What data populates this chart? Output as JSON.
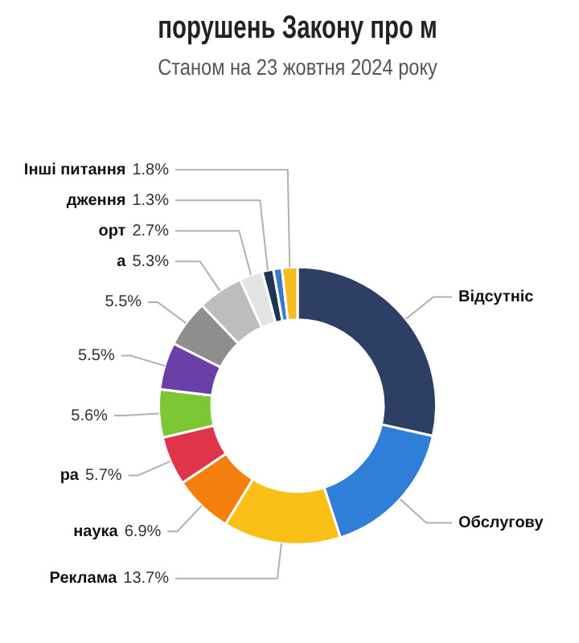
{
  "chart_data": {
    "type": "donut",
    "title": "порушень Закону про м",
    "subtitle": "Станом на 23 жовтня 2024 року",
    "categories": [
      "Відсутніс",
      "Обслугову",
      "Реклама",
      "наука",
      "ра",
      null,
      null,
      null,
      "а",
      "орт",
      "дження",
      null,
      "Інші питання"
    ],
    "values": [
      28.5,
      16.5,
      13.7,
      6.9,
      5.7,
      5.6,
      5.5,
      5.5,
      5.3,
      2.7,
      1.3,
      1.0,
      1.8
    ],
    "value_labels": [
      null,
      null,
      "13.7%",
      "6.9%",
      "5.7%",
      "5.6%",
      "5.5%",
      "5.5%",
      "5.3%",
      "2.7%",
      "1.3%",
      null,
      "1.8%"
    ],
    "colors": [
      "#2e3f66",
      "#2f7fd8",
      "#fbc016",
      "#f57f0e",
      "#e0344a",
      "#7ec734",
      "#6a3fa8",
      "#8e8e8e",
      "#bdbdbd",
      "#e3e3e3",
      "#1f3558",
      "#3a78c8",
      "#f6bd22"
    ],
    "legend": false
  }
}
